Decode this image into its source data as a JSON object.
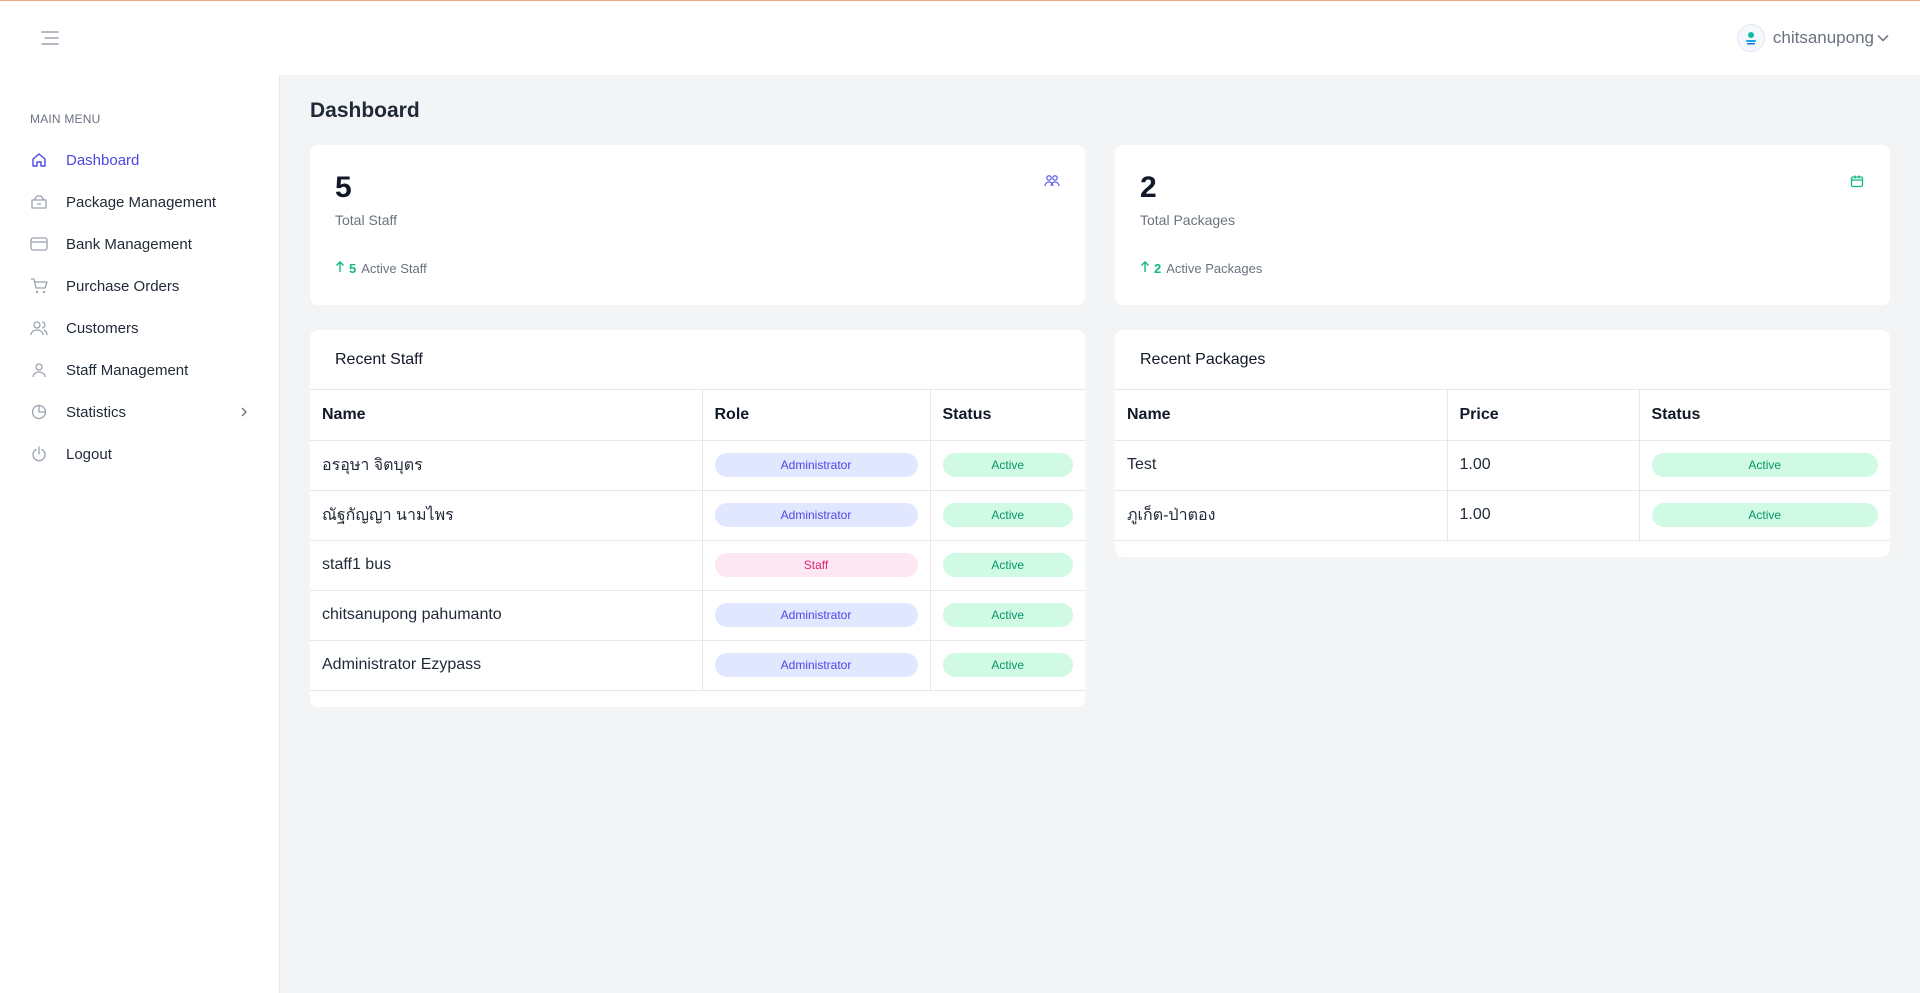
{
  "header": {
    "user_name": "chitsanupong",
    "avatar_icon": "avatar-logo-icon",
    "menu_icon": "hamburger-icon"
  },
  "sidebar": {
    "title": "MAIN MENU",
    "items": [
      {
        "label": "Dashboard",
        "icon": "home-icon",
        "active": true
      },
      {
        "label": "Package Management",
        "icon": "package-icon"
      },
      {
        "label": "Bank Management",
        "icon": "credit-card-icon"
      },
      {
        "label": "Purchase Orders",
        "icon": "cart-icon"
      },
      {
        "label": "Customers",
        "icon": "users-icon"
      },
      {
        "label": "Staff Management",
        "icon": "user-icon"
      },
      {
        "label": "Statistics",
        "icon": "pie-chart-icon",
        "has_children": true
      },
      {
        "label": "Logout",
        "icon": "power-icon"
      }
    ]
  },
  "page": {
    "title": "Dashboard"
  },
  "stats": {
    "staff": {
      "value": "5",
      "label": "Total Staff",
      "active_count": "5",
      "active_label": "Active Staff",
      "icon": "users-icon"
    },
    "packages": {
      "value": "2",
      "label": "Total Packages",
      "active_count": "2",
      "active_label": "Active Packages",
      "icon": "box-icon"
    }
  },
  "recent_staff": {
    "title": "Recent Staff",
    "columns": [
      "Name",
      "Role",
      "Status"
    ],
    "rows": [
      {
        "name": "อรอุษา จิตบุตร",
        "role": "Administrator",
        "status": "Active"
      },
      {
        "name": "ณัฐกัญญา นามไพร",
        "role": "Administrator",
        "status": "Active"
      },
      {
        "name": "staff1 bus",
        "role": "Staff",
        "status": "Active"
      },
      {
        "name": "chitsanupong pahumanto",
        "role": "Administrator",
        "status": "Active"
      },
      {
        "name": "Administrator Ezypass",
        "role": "Administrator",
        "status": "Active"
      }
    ]
  },
  "recent_packages": {
    "title": "Recent Packages",
    "columns": [
      "Name",
      "Price",
      "Status"
    ],
    "rows": [
      {
        "name": "Test",
        "price": "1.00",
        "status": "Active"
      },
      {
        "name": "ภูเก็ต-ป่าตอง",
        "price": "1.00",
        "status": "Active"
      }
    ]
  },
  "colors": {
    "accent": "#4f46e5",
    "success": "#10b981",
    "staff_badge": "#db2777",
    "top_line": "#f0a386"
  }
}
